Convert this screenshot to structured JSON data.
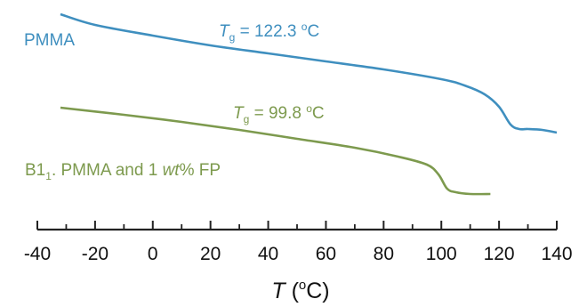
{
  "chart_data": {
    "type": "line",
    "xlabel": {
      "symbol": "T",
      "open": " (",
      "unit_sup": "o",
      "unit": "C)"
    },
    "xlim": [
      -40,
      140
    ],
    "xticks": [
      -40,
      -20,
      0,
      20,
      40,
      60,
      80,
      100,
      120,
      140
    ],
    "xtick_labels": [
      "-40",
      "-20",
      "0",
      "20",
      "40",
      "60",
      "80",
      "100",
      "120",
      "140"
    ],
    "series": [
      {
        "name": "PMMA",
        "color": "#3f8fbf",
        "x": [
          -32,
          -20,
          0,
          20,
          40,
          60,
          80,
          100,
          108,
          115,
          120,
          124,
          127,
          130,
          135,
          140
        ],
        "y": [
          16,
          28,
          40,
          51,
          60,
          69,
          78,
          89,
          96,
          106,
          120,
          140,
          145,
          145,
          146,
          149
        ],
        "annotation": {
          "symbol": "T",
          "sub": "g",
          "eq": " = 122.3 ",
          "sup": "o",
          "unit": "C"
        }
      },
      {
        "name": "B1",
        "name_sub": "1",
        "name_rest": ". PMMA and 1 ",
        "name_italic": "wt",
        "name_tail": "% FP",
        "color": "#7d9a4e",
        "x": [
          -32,
          -10,
          10,
          30,
          50,
          70,
          85,
          95,
          99,
          102,
          105,
          110,
          117
        ],
        "y": [
          121,
          129,
          137,
          146,
          156,
          166,
          176,
          185,
          196,
          212,
          216,
          218,
          218
        ],
        "annotation": {
          "symbol": "T",
          "sub": "g",
          "eq": " = 99.8 ",
          "sup": "o",
          "unit": "C"
        }
      }
    ]
  }
}
